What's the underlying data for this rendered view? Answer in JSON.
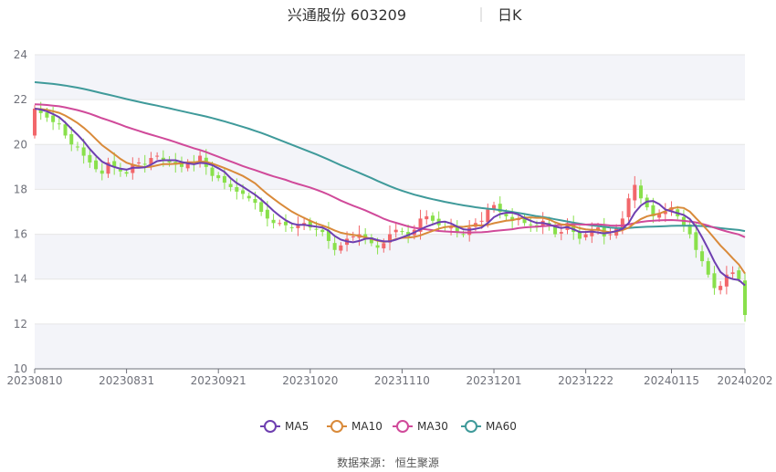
{
  "chart_data": {
    "type": "candlestick",
    "title": "兴通股份 603209",
    "period_label": "日K",
    "source": "数据来源： 恒生聚源",
    "y_ticks": [
      10,
      12,
      14,
      16,
      18,
      20,
      22,
      24
    ],
    "ylim": [
      10,
      24
    ],
    "x_tick_labels": [
      "20230810",
      "20230831",
      "20230921",
      "20231020",
      "20231110",
      "20231201",
      "20231222",
      "20240115",
      "20240202"
    ],
    "num_days": 117,
    "x_tick_indices": [
      0,
      15,
      30,
      45,
      60,
      75,
      90,
      104,
      116
    ],
    "colors": {
      "up": "#f2676b",
      "down": "#89e04b",
      "MA5": "#6e3fb0",
      "MA10": "#d98a3a",
      "MA30": "#d04a9a",
      "MA60": "#3f9a9a",
      "band": "#f3f4f9",
      "grid": "#e6e6e6"
    },
    "legend": [
      "MA5",
      "MA10",
      "MA30",
      "MA60"
    ],
    "close": [
      21.6,
      21.4,
      21.2,
      21.0,
      20.9,
      20.4,
      20.0,
      19.9,
      19.5,
      19.2,
      18.9,
      18.7,
      19.2,
      19.0,
      18.8,
      18.7,
      19.1,
      19.2,
      19.1,
      19.4,
      19.5,
      19.3,
      19.2,
      19.1,
      19.0,
      19.2,
      19.1,
      19.5,
      19.0,
      18.6,
      18.5,
      18.3,
      18.1,
      17.9,
      17.8,
      17.6,
      17.4,
      17.0,
      16.7,
      16.5,
      16.5,
      16.4,
      16.3,
      16.4,
      16.5,
      16.3,
      16.2,
      16.1,
      15.7,
      15.3,
      15.5,
      15.8,
      15.9,
      16.0,
      15.8,
      15.6,
      15.4,
      15.6,
      16.0,
      16.2,
      16.1,
      15.9,
      16.2,
      16.7,
      16.8,
      16.6,
      16.4,
      16.3,
      16.3,
      16.1,
      16.0,
      16.3,
      16.5,
      16.6,
      17.1,
      17.3,
      17.0,
      16.8,
      16.6,
      16.7,
      16.5,
      16.4,
      16.3,
      16.6,
      16.4,
      16.0,
      16.1,
      16.5,
      16.1,
      15.8,
      16.0,
      16.2,
      16.3,
      15.9,
      16.0,
      16.3,
      16.7,
      17.6,
      18.2,
      17.6,
      17.2,
      16.8,
      16.9,
      17.0,
      17.2,
      16.8,
      16.4,
      16.0,
      15.3,
      14.8,
      14.2,
      13.6,
      13.7,
      14.2,
      14.3,
      14.0,
      12.4
    ]
  }
}
